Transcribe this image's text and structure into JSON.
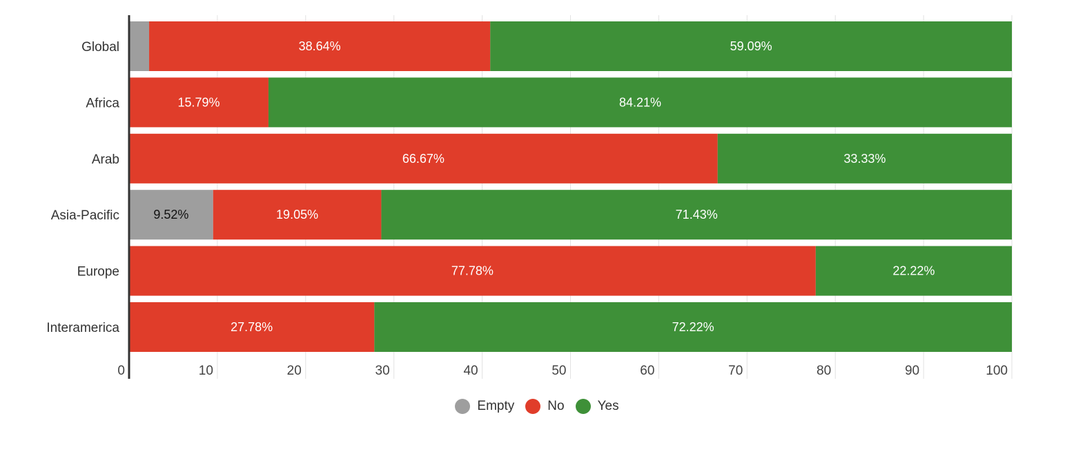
{
  "chart_data": {
    "type": "bar",
    "orientation": "horizontal",
    "stacked": true,
    "categories": [
      "Global",
      "Africa",
      "Arab",
      "Asia-Pacific",
      "Europe",
      "Interamerica"
    ],
    "series": [
      {
        "name": "Empty",
        "color": "#9e9e9e",
        "values": [
          2.27,
          0,
          0,
          9.52,
          0,
          0
        ],
        "labels": [
          "",
          "",
          "",
          "9.52%",
          "",
          ""
        ]
      },
      {
        "name": "No",
        "color": "#e03d2a",
        "values": [
          38.64,
          15.79,
          66.67,
          19.05,
          77.78,
          27.78
        ],
        "labels": [
          "38.64%",
          "15.79%",
          "66.67%",
          "19.05%",
          "77.78%",
          "27.78%"
        ]
      },
      {
        "name": "Yes",
        "color": "#3e9038",
        "values": [
          59.09,
          84.21,
          33.33,
          71.43,
          22.22,
          72.22
        ],
        "labels": [
          "59.09%",
          "84.21%",
          "33.33%",
          "71.43%",
          "22.22%",
          "72.22%"
        ]
      }
    ],
    "x_ticks": [
      "0",
      "10",
      "20",
      "30",
      "40",
      "50",
      "60",
      "70",
      "80",
      "90",
      "100"
    ],
    "xlim": [
      0,
      100
    ],
    "grid": true,
    "legend_position": "bottom",
    "title": "",
    "xlabel": "",
    "ylabel": ""
  }
}
